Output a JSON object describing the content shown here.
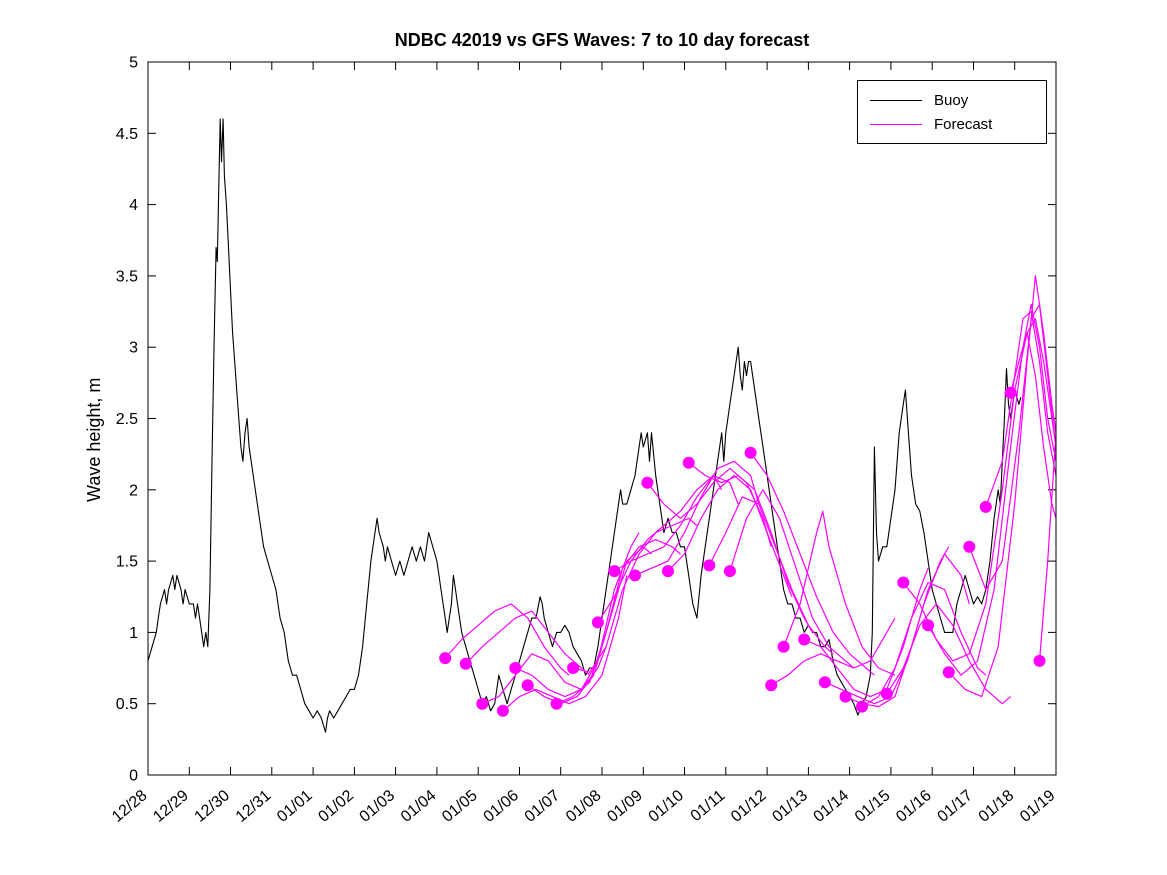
{
  "figure": {
    "title": "NDBC 42019 vs GFS Waves: 7 to 10 day forecast"
  },
  "chart_data": {
    "type": "line",
    "title": "NDBC 42019 vs GFS Waves: 7 to 10 day forecast",
    "xlabel": "",
    "ylabel": "Wave height, m",
    "ylim": [
      0,
      5
    ],
    "y_ticks": [
      0,
      0.5,
      1,
      1.5,
      2,
      2.5,
      3,
      3.5,
      4,
      4.5,
      5
    ],
    "x_tick_labels": [
      "12/28",
      "12/29",
      "12/30",
      "12/31",
      "01/01",
      "01/02",
      "01/03",
      "01/04",
      "01/05",
      "01/06",
      "01/07",
      "01/08",
      "01/09",
      "01/10",
      "01/11",
      "01/12",
      "01/13",
      "01/14",
      "01/15",
      "01/16",
      "01/17",
      "01/18",
      "01/19"
    ],
    "x_range_days": [
      0,
      22
    ],
    "grid": false,
    "legend": [
      {
        "label": "Buoy",
        "color": "#000000"
      },
      {
        "label": "Forecast",
        "color": "#ff00ff"
      }
    ],
    "buoy": {
      "name": "Buoy",
      "color": "#000000",
      "points": [
        0,
        0.8,
        0.1,
        0.9,
        0.2,
        1.0,
        0.25,
        1.1,
        0.3,
        1.2,
        0.4,
        1.3,
        0.45,
        1.2,
        0.5,
        1.3,
        0.6,
        1.4,
        0.65,
        1.3,
        0.7,
        1.4,
        0.8,
        1.3,
        0.85,
        1.2,
        0.9,
        1.3,
        1.0,
        1.2,
        1.1,
        1.2,
        1.15,
        1.1,
        1.2,
        1.2,
        1.3,
        1.0,
        1.35,
        0.9,
        1.4,
        1.0,
        1.45,
        0.9,
        1.5,
        1.3,
        1.55,
        2.2,
        1.6,
        3.0,
        1.65,
        3.7,
        1.68,
        3.6,
        1.72,
        4.2,
        1.75,
        4.6,
        1.78,
        4.3,
        1.82,
        4.6,
        1.85,
        4.2,
        1.9,
        4.0,
        1.95,
        3.7,
        2.0,
        3.4,
        2.05,
        3.1,
        2.1,
        2.9,
        2.15,
        2.7,
        2.2,
        2.5,
        2.25,
        2.3,
        2.3,
        2.2,
        2.35,
        2.4,
        2.4,
        2.5,
        2.45,
        2.3,
        2.5,
        2.2,
        2.6,
        2.0,
        2.7,
        1.8,
        2.8,
        1.6,
        2.9,
        1.5,
        3.0,
        1.4,
        3.1,
        1.3,
        3.2,
        1.1,
        3.3,
        1.0,
        3.4,
        0.8,
        3.5,
        0.7,
        3.6,
        0.7,
        3.7,
        0.6,
        3.8,
        0.5,
        3.9,
        0.45,
        4.0,
        0.4,
        4.1,
        0.45,
        4.2,
        0.4,
        4.3,
        0.3,
        4.35,
        0.4,
        4.4,
        0.45,
        4.5,
        0.4,
        4.6,
        0.45,
        4.7,
        0.5,
        4.8,
        0.55,
        4.9,
        0.6,
        5.0,
        0.6,
        5.1,
        0.7,
        5.2,
        0.9,
        5.3,
        1.2,
        5.4,
        1.5,
        5.5,
        1.7,
        5.55,
        1.8,
        5.6,
        1.7,
        5.7,
        1.6,
        5.75,
        1.5,
        5.8,
        1.6,
        5.9,
        1.5,
        6.0,
        1.4,
        6.1,
        1.5,
        6.2,
        1.4,
        6.3,
        1.5,
        6.4,
        1.6,
        6.5,
        1.5,
        6.6,
        1.6,
        6.7,
        1.5,
        6.8,
        1.7,
        6.9,
        1.6,
        7.0,
        1.5,
        7.1,
        1.3,
        7.2,
        1.1,
        7.25,
        1.0,
        7.3,
        1.1,
        7.35,
        1.2,
        7.4,
        1.4,
        7.45,
        1.3,
        7.5,
        1.2,
        7.6,
        1.0,
        7.7,
        0.9,
        7.8,
        0.8,
        7.9,
        0.7,
        8.0,
        0.6,
        8.1,
        0.5,
        8.2,
        0.55,
        8.3,
        0.45,
        8.4,
        0.5,
        8.5,
        0.7,
        8.6,
        0.6,
        8.7,
        0.5,
        8.8,
        0.6,
        8.9,
        0.7,
        9.0,
        0.8,
        9.1,
        0.9,
        9.2,
        1.0,
        9.3,
        1.1,
        9.4,
        1.1,
        9.5,
        1.25,
        9.55,
        1.2,
        9.6,
        1.1,
        9.7,
        1.0,
        9.8,
        0.9,
        9.9,
        1.0,
        10.0,
        1.0,
        10.1,
        1.05,
        10.2,
        1.0,
        10.3,
        0.9,
        10.4,
        0.85,
        10.5,
        0.8,
        10.6,
        0.7,
        10.7,
        0.75,
        10.8,
        0.75,
        10.9,
        0.9,
        11.0,
        1.1,
        11.1,
        1.3,
        11.2,
        1.5,
        11.3,
        1.7,
        11.4,
        1.9,
        11.45,
        2.0,
        11.5,
        1.9,
        11.6,
        1.9,
        11.7,
        2.0,
        11.8,
        2.1,
        11.9,
        2.3,
        11.95,
        2.4,
        12.0,
        2.3,
        12.1,
        2.4,
        12.15,
        2.2,
        12.2,
        2.4,
        12.3,
        2.1,
        12.4,
        1.9,
        12.5,
        1.7,
        12.6,
        1.8,
        12.7,
        1.7,
        12.8,
        1.7,
        12.9,
        1.6,
        13.0,
        1.6,
        13.1,
        1.4,
        13.2,
        1.2,
        13.3,
        1.1,
        13.4,
        1.4,
        13.5,
        1.6,
        13.6,
        1.8,
        13.7,
        2.0,
        13.8,
        2.2,
        13.9,
        2.4,
        13.95,
        2.2,
        14.0,
        2.4,
        14.1,
        2.6,
        14.2,
        2.8,
        14.3,
        3.0,
        14.35,
        2.8,
        14.4,
        2.7,
        14.45,
        2.9,
        14.5,
        2.8,
        14.55,
        2.9,
        14.6,
        2.9,
        14.7,
        2.7,
        14.8,
        2.5,
        14.9,
        2.3,
        15.0,
        2.1,
        15.1,
        1.9,
        15.2,
        1.7,
        15.3,
        1.5,
        15.4,
        1.3,
        15.5,
        1.2,
        15.6,
        1.2,
        15.7,
        1.1,
        15.8,
        1.1,
        15.9,
        1.0,
        16.0,
        1.05,
        16.1,
        1.0,
        16.2,
        1.0,
        16.3,
        0.9,
        16.4,
        0.9,
        16.5,
        0.95,
        16.6,
        0.8,
        16.7,
        0.7,
        16.8,
        0.65,
        16.9,
        0.6,
        17.0,
        0.55,
        17.1,
        0.5,
        17.2,
        0.42,
        17.3,
        0.5,
        17.4,
        0.55,
        17.5,
        0.7,
        17.55,
        1.0,
        17.6,
        2.3,
        17.65,
        1.7,
        17.7,
        1.5,
        17.8,
        1.6,
        17.9,
        1.6,
        18.0,
        1.8,
        18.1,
        2.0,
        18.2,
        2.4,
        18.3,
        2.6,
        18.35,
        2.7,
        18.4,
        2.5,
        18.5,
        2.1,
        18.6,
        1.9,
        18.7,
        1.85,
        18.8,
        1.7,
        18.9,
        1.5,
        19.0,
        1.3,
        19.1,
        1.2,
        19.2,
        1.1,
        19.3,
        1.0,
        19.4,
        1.0,
        19.5,
        1.0,
        19.6,
        1.2,
        19.7,
        1.3,
        19.8,
        1.4,
        19.9,
        1.3,
        20.0,
        1.2,
        20.1,
        1.25,
        20.2,
        1.2,
        20.3,
        1.3,
        20.4,
        1.5,
        20.5,
        1.8,
        20.6,
        2.0,
        20.65,
        1.9,
        20.7,
        2.2,
        20.75,
        2.5,
        20.8,
        2.85,
        20.85,
        2.6,
        20.9,
        2.5,
        21.0,
        2.7,
        21.1,
        2.6,
        21.15,
        2.65
      ]
    },
    "forecast_color": "#ff00ff",
    "forecasts": [
      {
        "points": [
          7.2,
          0.82,
          7.6,
          0.95,
          8.0,
          1.05,
          8.4,
          1.15,
          8.8,
          1.2,
          9.2,
          1.1,
          9.6,
          0.9,
          10.0,
          0.75,
          10.2,
          0.7
        ]
      },
      {
        "points": [
          7.7,
          0.78,
          8.1,
          0.9,
          8.5,
          1.0,
          8.9,
          1.1,
          9.3,
          1.15,
          9.7,
          1.0,
          10.1,
          0.85,
          10.5,
          0.75,
          10.7,
          0.7
        ]
      },
      {
        "points": [
          8.1,
          0.5,
          8.5,
          0.55,
          8.9,
          0.7,
          9.3,
          0.85,
          9.7,
          0.8,
          10.1,
          0.65,
          10.5,
          0.6,
          10.9,
          0.75,
          11.1,
          0.9
        ]
      },
      {
        "points": [
          8.6,
          0.45,
          9.0,
          0.55,
          9.4,
          0.6,
          9.8,
          0.55,
          10.2,
          0.5,
          10.6,
          0.55,
          11.0,
          0.7,
          11.4,
          1.1,
          11.6,
          1.4
        ]
      },
      {
        "points": [
          8.9,
          0.75,
          9.3,
          0.7,
          9.7,
          0.6,
          10.1,
          0.55,
          10.5,
          0.6,
          10.9,
          0.8,
          11.3,
          1.3,
          11.7,
          1.6,
          11.9,
          1.7
        ]
      },
      {
        "points": [
          9.2,
          0.63,
          9.6,
          0.55,
          10.0,
          0.5,
          10.4,
          0.55,
          10.8,
          0.7,
          11.2,
          1.1,
          11.6,
          1.5,
          12.0,
          1.6,
          12.2,
          1.55
        ]
      },
      {
        "points": [
          9.9,
          0.5,
          10.3,
          0.55,
          10.7,
          0.65,
          11.1,
          1.0,
          11.5,
          1.45,
          11.9,
          1.6,
          12.3,
          1.65,
          12.7,
          1.6,
          12.9,
          1.55
        ]
      },
      {
        "points": [
          10.3,
          0.75,
          10.7,
          0.72,
          11.1,
          0.9,
          11.5,
          1.3,
          11.9,
          1.55,
          12.3,
          1.7,
          12.7,
          1.75,
          13.1,
          1.8,
          13.3,
          1.75
        ]
      },
      {
        "points": [
          10.9,
          1.07,
          11.3,
          1.25,
          11.7,
          1.5,
          12.1,
          1.65,
          12.5,
          1.75,
          12.9,
          1.85,
          13.3,
          2.0,
          13.7,
          2.1,
          13.9,
          2.0
        ]
      },
      {
        "points": [
          11.3,
          1.43,
          11.7,
          1.5,
          12.1,
          1.55,
          12.5,
          1.6,
          12.9,
          1.75,
          13.3,
          1.95,
          13.7,
          2.1,
          14.1,
          2.05,
          14.3,
          1.9
        ]
      },
      {
        "points": [
          11.8,
          1.4,
          12.2,
          1.45,
          12.6,
          1.5,
          13.0,
          1.7,
          13.4,
          1.95,
          13.8,
          2.15,
          14.2,
          2.2,
          14.6,
          2.1,
          14.8,
          1.9
        ]
      },
      {
        "points": [
          12.1,
          2.05,
          12.5,
          1.9,
          12.9,
          1.8,
          13.3,
          1.9,
          13.7,
          2.05,
          14.1,
          2.15,
          14.5,
          2.05,
          14.9,
          1.8,
          15.1,
          1.6
        ]
      },
      {
        "points": [
          12.6,
          1.43,
          13.0,
          1.55,
          13.4,
          1.8,
          13.8,
          2.0,
          14.2,
          2.1,
          14.6,
          2.0,
          15.0,
          1.7,
          15.4,
          1.4,
          15.6,
          1.25
        ]
      },
      {
        "points": [
          13.1,
          2.19,
          13.5,
          2.1,
          13.9,
          2.05,
          14.3,
          2.1,
          14.7,
          2.0,
          15.1,
          1.7,
          15.5,
          1.35,
          15.9,
          1.1,
          16.1,
          1.0
        ]
      },
      {
        "points": [
          13.6,
          1.47,
          14.0,
          1.7,
          14.4,
          1.95,
          14.8,
          1.9,
          15.2,
          1.6,
          15.6,
          1.3,
          16.0,
          1.05,
          16.4,
          0.9,
          16.6,
          0.85
        ]
      },
      {
        "points": [
          14.1,
          1.43,
          14.5,
          1.8,
          14.9,
          2.0,
          15.3,
          1.8,
          15.7,
          1.45,
          16.1,
          1.1,
          16.5,
          0.9,
          16.9,
          0.8,
          17.1,
          0.75
        ]
      },
      {
        "points": [
          14.6,
          2.26,
          15.0,
          2.1,
          15.4,
          1.85,
          15.8,
          1.55,
          16.2,
          1.25,
          16.6,
          1.0,
          17.0,
          0.85,
          17.4,
          0.75,
          17.6,
          0.7
        ]
      },
      {
        "points": [
          15.1,
          0.63,
          15.5,
          0.7,
          15.9,
          0.8,
          16.3,
          0.85,
          16.7,
          0.8,
          17.1,
          0.75,
          17.5,
          0.8,
          17.9,
          1.0,
          18.1,
          1.1
        ]
      },
      {
        "points": [
          15.4,
          0.9,
          15.8,
          1.2,
          16.2,
          1.7,
          16.35,
          1.85,
          16.5,
          1.6,
          16.9,
          1.2,
          17.3,
          0.9,
          17.7,
          0.75,
          18.1,
          0.7
        ]
      },
      {
        "points": [
          15.9,
          0.95,
          16.3,
          0.9,
          16.7,
          0.75,
          17.1,
          0.6,
          17.5,
          0.55,
          17.9,
          0.6,
          18.3,
          0.9,
          18.7,
          1.3,
          18.9,
          1.45
        ]
      },
      {
        "points": [
          16.4,
          0.65,
          16.8,
          0.6,
          17.2,
          0.55,
          17.6,
          0.5,
          18.0,
          0.55,
          18.4,
          0.8,
          18.8,
          1.2,
          19.2,
          1.5,
          19.4,
          1.6
        ]
      },
      {
        "points": [
          16.9,
          0.55,
          17.3,
          0.5,
          17.7,
          0.48,
          18.1,
          0.55,
          18.5,
          0.9,
          18.9,
          1.3,
          19.3,
          1.55,
          19.7,
          1.4,
          19.9,
          1.2
        ]
      },
      {
        "points": [
          17.3,
          0.48,
          17.7,
          0.55,
          18.1,
          0.75,
          18.5,
          1.1,
          18.9,
          1.35,
          19.3,
          1.3,
          19.7,
          1.0,
          20.1,
          0.75,
          20.3,
          0.7
        ]
      },
      {
        "points": [
          17.9,
          0.57,
          18.3,
          0.75,
          18.7,
          1.05,
          19.1,
          1.2,
          19.5,
          1.05,
          19.9,
          0.8,
          20.3,
          0.6,
          20.7,
          0.5,
          20.9,
          0.55
        ]
      },
      {
        "points": [
          18.3,
          1.35,
          18.7,
          1.2,
          19.1,
          0.95,
          19.5,
          0.8,
          19.9,
          0.85,
          20.3,
          1.2,
          20.7,
          2.0,
          21.0,
          2.7,
          21.3,
          3.1,
          21.5,
          2.8,
          21.7,
          2.3,
          21.9,
          1.9,
          22.0,
          1.8
        ]
      },
      {
        "points": [
          18.9,
          1.05,
          19.3,
          0.85,
          19.7,
          0.7,
          20.1,
          0.8,
          20.5,
          1.3,
          20.9,
          2.3,
          21.2,
          3.0,
          21.4,
          3.3,
          21.6,
          3.0,
          21.8,
          2.5,
          22.0,
          2.2
        ]
      },
      {
        "points": [
          19.4,
          0.72,
          19.8,
          0.6,
          20.2,
          0.55,
          20.6,
          0.9,
          21.0,
          1.9,
          21.3,
          2.9,
          21.5,
          3.5,
          21.7,
          3.1,
          21.9,
          2.6,
          22.0,
          2.4
        ]
      },
      {
        "points": [
          19.9,
          1.6,
          20.3,
          1.3,
          20.7,
          1.5,
          21.1,
          2.4,
          21.4,
          3.2,
          21.6,
          3.3,
          21.8,
          2.8,
          22.0,
          2.3
        ]
      },
      {
        "points": [
          20.3,
          1.88,
          20.7,
          2.2,
          21.0,
          2.8,
          21.2,
          3.2,
          21.4,
          3.25,
          21.6,
          2.9,
          21.8,
          2.4,
          22.0,
          2.1
        ]
      },
      {
        "points": [
          20.9,
          2.68,
          21.1,
          2.9,
          21.3,
          3.1,
          21.5,
          3.2,
          21.7,
          2.9,
          21.9,
          2.5,
          22.0,
          2.3
        ]
      },
      {
        "points": [
          21.6,
          0.8,
          21.8,
          1.5,
          22.0,
          2.4
        ]
      }
    ],
    "marker_radius_px": 6
  }
}
